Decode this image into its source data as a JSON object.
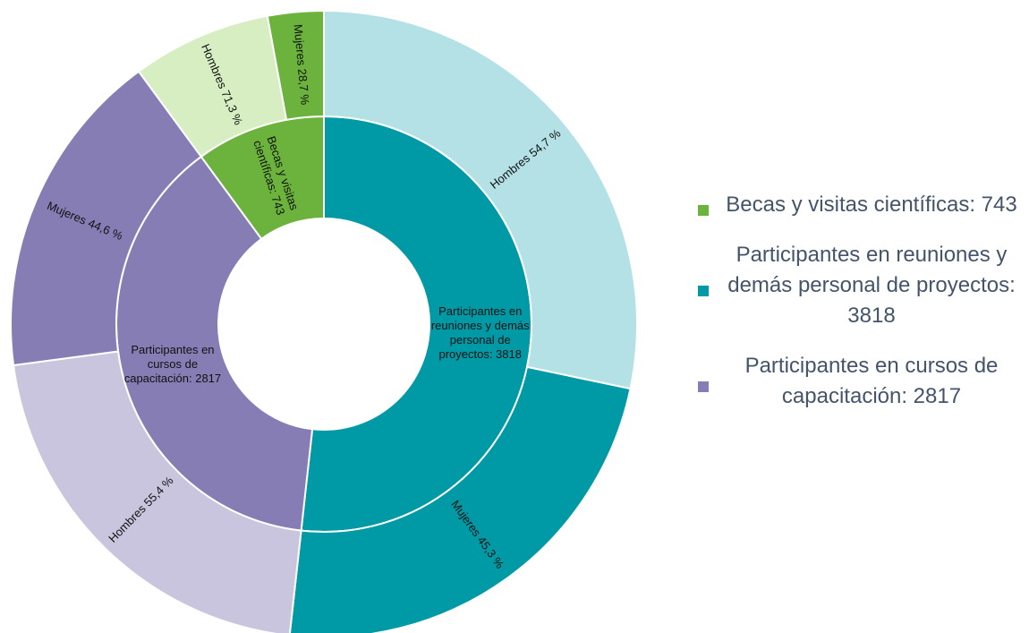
{
  "chart_data": {
    "type": "sunburst",
    "categories": [
      {
        "label": "Participantes en reuniones y demás personal de proyectos: 3818",
        "value": 3818,
        "color": "#009aa6",
        "children": [
          {
            "name": "Hombres",
            "value": 54.7,
            "value_label": "54,7 %",
            "color": "#b3e1e6"
          },
          {
            "name": "Mujeres",
            "value": 45.3,
            "value_label": "45,3 %",
            "color": "#009aa6"
          }
        ]
      },
      {
        "label": "Participantes en cursos de capacitación: 2817",
        "value": 2817,
        "color": "#877db5",
        "children": [
          {
            "name": "Hombres",
            "value": 55.4,
            "value_label": "55,4 %",
            "color": "#c9c5df"
          },
          {
            "name": "Mujeres",
            "value": 44.6,
            "value_label": "44,6 %",
            "color": "#877db5"
          }
        ]
      },
      {
        "label": "Becas y visitas científicas: 743",
        "value": 743,
        "color": "#6bb33c",
        "children": [
          {
            "name": "Hombres",
            "value": 71.3,
            "value_label": "71,3 %",
            "color": "#d6eec2"
          },
          {
            "name": "Mujeres",
            "value": 28.7,
            "value_label": "28,7 %",
            "color": "#6bb33c"
          }
        ]
      }
    ],
    "legend": [
      "chart_data.categories.2",
      "chart_data.categories.0",
      "chart_data.categories.1"
    ]
  }
}
